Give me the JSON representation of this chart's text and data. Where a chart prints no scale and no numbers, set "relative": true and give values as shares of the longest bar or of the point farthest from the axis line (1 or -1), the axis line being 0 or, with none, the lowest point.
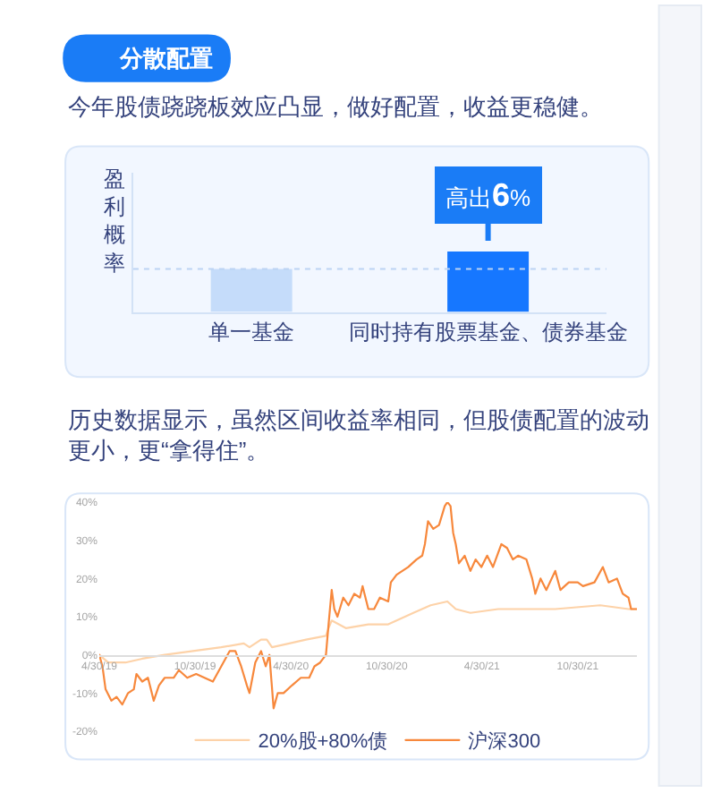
{
  "chart_data": [
    {
      "type": "bar",
      "title": "分散配置",
      "subtitle": "今年股债跷跷板效应凸显，做好配置，收益更稳健。",
      "ylabel": "盈利概率",
      "categories": [
        "单一基金",
        "同时持有股票基金、债券基金"
      ],
      "values": [
        0.71,
        1
      ],
      "colors": [
        "#c5dcfa",
        "#1677ff"
      ],
      "relative": true,
      "tick_labels": "x",
      "ref_lines": [
        {
          "axis": "y",
          "value": 0.71,
          "color": "#bcd3f3",
          "line_style": "dotted"
        }
      ],
      "annotations": [
        {
          "text": "高出6%",
          "x": "同时持有股票基金、债券基金",
          "y": 1
        }
      ]
    },
    {
      "type": "line",
      "title": "历史数据显示，虽然区间收益率相同，但股债配置的波动更小，更“拿得住”。",
      "series": [
        {
          "name": "20%股+80%债",
          "color": "#fdd2a8",
          "x": [
            "2019-04-30",
            "2019-05-17",
            "2019-06-19",
            "2019-07-21",
            "2019-09-02",
            "2019-10-26",
            "2019-12-19",
            "2020-01-31",
            "2020-02-11",
            "2020-03-04",
            "2020-03-15",
            "2020-03-25",
            "2020-04-27",
            "2020-05-29",
            "2020-07-06",
            "2020-07-11",
            "2020-07-17",
            "2020-08-13",
            "2020-09-25",
            "2020-11-02",
            "2020-12-20",
            "2021-01-22",
            "2021-02-23",
            "2021-03-11",
            "2021-04-08",
            "2021-05-31",
            "2021-07-24",
            "2021-09-17",
            "2021-12-12",
            "2022-02-04",
            "2022-02-20"
          ],
          "values": [
            0,
            -2,
            -2,
            -1,
            0,
            1,
            2,
            3,
            2,
            4,
            4,
            2,
            3,
            4,
            5,
            7,
            9,
            7,
            8,
            8,
            11,
            13,
            14,
            12,
            11,
            12,
            12,
            12,
            13,
            12,
            12
          ]
        },
        {
          "name": "沪深300",
          "color": "#f7883c",
          "x": [
            "2019-04-30",
            "2019-05-06",
            "2019-05-12",
            "2019-05-23",
            "2019-06-02",
            "2019-06-13",
            "2019-06-24",
            "2019-07-05",
            "2019-07-10",
            "2019-07-21",
            "2019-08-01",
            "2019-08-12",
            "2019-08-22",
            "2019-09-02",
            "2019-09-19",
            "2019-09-29",
            "2019-10-15",
            "2019-11-01",
            "2019-11-17",
            "2019-12-03",
            "2019-12-19",
            "2020-01-04",
            "2020-01-15",
            "2020-01-26",
            "2020-02-06",
            "2020-02-11",
            "2020-02-22",
            "2020-03-04",
            "2020-03-13",
            "2020-03-20",
            "2020-03-28",
            "2020-04-05",
            "2020-04-16",
            "2020-05-02",
            "2020-05-19",
            "2020-06-04",
            "2020-06-14",
            "2020-06-25",
            "2020-07-06",
            "2020-07-11",
            "2020-07-17",
            "2020-07-22",
            "2020-07-28",
            "2020-08-08",
            "2020-08-18",
            "2020-08-29",
            "2020-09-09",
            "2020-09-14",
            "2020-09-25",
            "2020-10-06",
            "2020-10-17",
            "2020-11-02",
            "2020-11-07",
            "2020-11-18",
            "2020-11-29",
            "2020-12-10",
            "2020-12-26",
            "2021-01-06",
            "2021-01-11",
            "2021-01-17",
            "2021-01-27",
            "2021-02-07",
            "2021-02-18",
            "2021-02-23",
            "2021-03-01",
            "2021-03-06",
            "2021-03-11",
            "2021-03-17",
            "2021-03-28",
            "2021-04-08",
            "2021-04-18",
            "2021-04-29",
            "2021-05-10",
            "2021-05-21",
            "2021-06-06",
            "2021-06-17",
            "2021-06-28",
            "2021-07-08",
            "2021-07-24",
            "2021-08-04",
            "2021-08-10",
            "2021-08-20",
            "2021-08-31",
            "2021-09-17",
            "2021-09-27",
            "2021-10-13",
            "2021-10-30",
            "2021-11-09",
            "2021-12-01",
            "2021-12-17",
            "2021-12-28",
            "2022-01-13",
            "2022-01-24",
            "2022-02-04",
            "2022-02-09",
            "2022-02-20"
          ],
          "values": [
            0,
            -3,
            -9,
            -12,
            -11,
            -13,
            -10,
            -9,
            -5,
            -7,
            -6,
            -12,
            -8,
            -6,
            -6,
            -4,
            -6,
            -5,
            -6,
            -7,
            -3,
            1,
            1,
            -3,
            -8,
            -10,
            -2,
            1,
            -3,
            0,
            -14,
            -10,
            -10,
            -8,
            -6,
            -6,
            -3,
            -2,
            0,
            8,
            17,
            12,
            10,
            15,
            13,
            16,
            15,
            18,
            12,
            12,
            15,
            14,
            19,
            21,
            22,
            23,
            25,
            26,
            29,
            35,
            33,
            34,
            39,
            40,
            39,
            32,
            29,
            24,
            26,
            22,
            25,
            23,
            26,
            23,
            29,
            28,
            25,
            26,
            25,
            20,
            16,
            20,
            17,
            22,
            17,
            19,
            19,
            18,
            19,
            23,
            19,
            20,
            16,
            15,
            12,
            12
          ]
        }
      ],
      "xlim": [
        "2019-04-30",
        "2022-02-20"
      ],
      "xticks": [
        {
          "value": "2019-04-30",
          "label": "4/30/19"
        },
        {
          "value": "2019-10-30",
          "label": "10/30/19"
        },
        {
          "value": "2020-04-30",
          "label": "4/30/20"
        },
        {
          "value": "2020-10-30",
          "label": "10/30/20"
        },
        {
          "value": "2021-04-30",
          "label": "4/30/21"
        },
        {
          "value": "2021-10-30",
          "label": "10/30/21"
        }
      ],
      "ylim": [
        -20,
        40
      ],
      "yticks": [
        {
          "value": 40,
          "label": "40%"
        },
        {
          "value": 30,
          "label": "30%"
        },
        {
          "value": 20,
          "label": "20%"
        },
        {
          "value": 10,
          "label": "10%"
        },
        {
          "value": 0,
          "label": "0%"
        },
        {
          "value": -10,
          "label": "-10%"
        },
        {
          "value": -20,
          "label": "-20%"
        }
      ],
      "legend": "bottom",
      "line_style": "solid"
    }
  ]
}
